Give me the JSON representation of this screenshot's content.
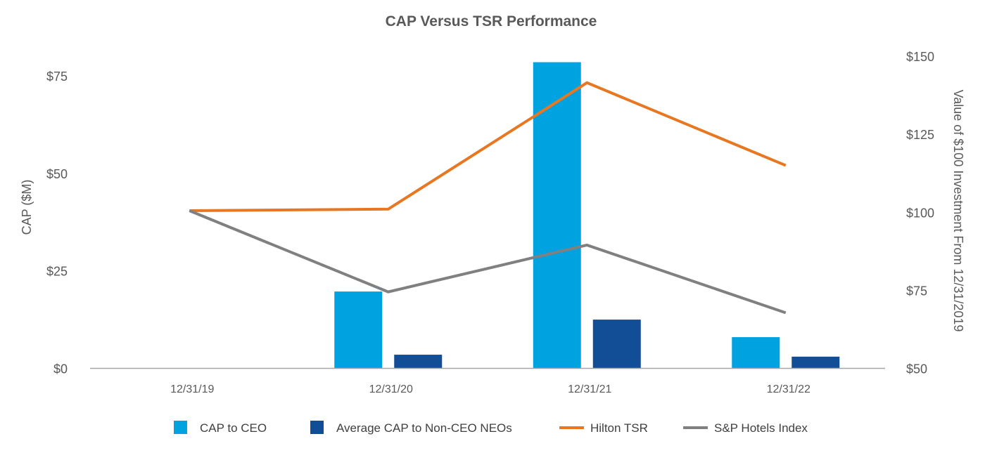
{
  "chart_data": {
    "type": "bar+line",
    "title": "CAP Versus TSR Performance",
    "categories": [
      "12/31/19",
      "12/31/20",
      "12/31/21",
      "12/31/22"
    ],
    "left_axis": {
      "label": "CAP ($M)",
      "ylim": [
        0,
        80
      ],
      "ticks": [
        0,
        25,
        50,
        75
      ],
      "tick_labels": [
        "$0",
        "$25",
        "$50",
        "$75"
      ]
    },
    "right_axis": {
      "label": "Value of $100 Investment From 12/31/2019",
      "ylim": [
        50,
        150
      ],
      "ticks": [
        50,
        75,
        100,
        125,
        150
      ],
      "tick_labels": [
        "$50",
        "$75",
        "$100",
        "$125",
        "$150"
      ]
    },
    "bar_series": [
      {
        "name": "CAP to CEO",
        "color": "#00A3E0",
        "values": [
          null,
          19.7,
          78.5,
          8.0
        ]
      },
      {
        "name": "Average CAP to Non-CEO NEOs",
        "color": "#124E96",
        "values": [
          null,
          3.5,
          12.5,
          3.0
        ]
      }
    ],
    "line_series": [
      {
        "name": "Hilton TSR",
        "color": "#E87722",
        "values": [
          100.5,
          101,
          141.5,
          115
        ]
      },
      {
        "name": "S&P Hotels Index",
        "color": "#808080",
        "values": [
          100.5,
          74.5,
          89.5,
          67.8
        ]
      }
    ],
    "legend": [
      "CAP to CEO",
      "Average CAP to Non-CEO NEOs",
      "Hilton TSR",
      "S&P Hotels Index"
    ],
    "legend_position": "bottom",
    "grid": false
  }
}
